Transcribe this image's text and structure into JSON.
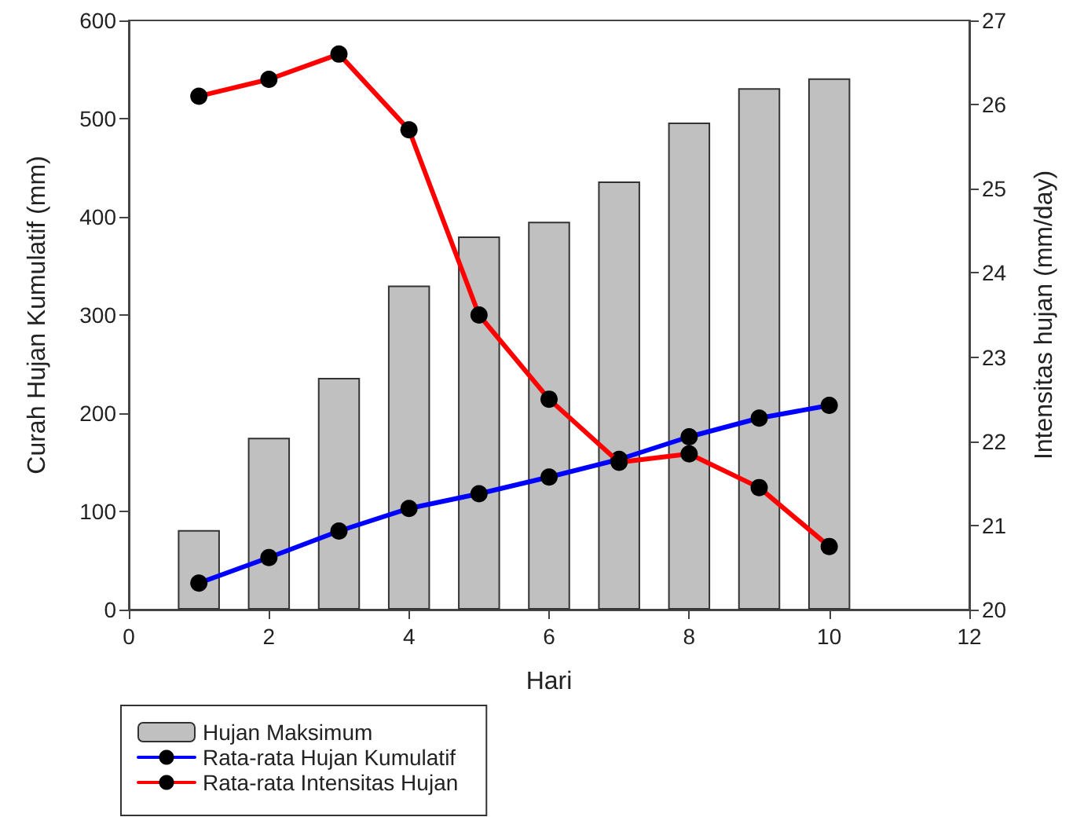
{
  "chart_data": {
    "type": "bar",
    "xlabel": "Hari",
    "ylabel": "Curah Hujan Kumulatif (mm)",
    "y2label": "Intensitas hujan (mm/day)",
    "x": [
      1,
      2,
      3,
      4,
      5,
      6,
      7,
      8,
      9,
      10
    ],
    "series": [
      {
        "name": "Hujan Maksimum",
        "color": "#c0c0c0",
        "values": [
          81,
          175,
          236,
          330,
          380,
          395,
          436,
          496,
          531,
          541
        ]
      },
      {
        "name": "Rata-rata Hujan Kumulatif",
        "type": "line",
        "color": "#0000ff",
        "values": [
          27,
          53,
          80,
          103,
          118,
          135,
          153,
          176,
          195,
          208
        ]
      },
      {
        "name": "Rata-rata Intensitas Hujan",
        "type": "line",
        "color": "#ff0000",
        "axis": "y2",
        "values": [
          26.1,
          26.3,
          26.6,
          25.7,
          23.5,
          22.5,
          21.75,
          21.85,
          21.45,
          20.75
        ]
      }
    ],
    "xlim": [
      0,
      12
    ],
    "xticks": [
      0,
      2,
      4,
      6,
      8,
      10,
      12
    ],
    "ylim": [
      0,
      600
    ],
    "yticks": [
      0,
      100,
      200,
      300,
      400,
      500,
      600
    ],
    "y2lim": [
      20,
      27
    ],
    "y2ticks": [
      20,
      21,
      22,
      23,
      24,
      25,
      26,
      27
    ],
    "marker": "circle",
    "line_style": "solid",
    "grid": false,
    "legend": "bottom left"
  }
}
